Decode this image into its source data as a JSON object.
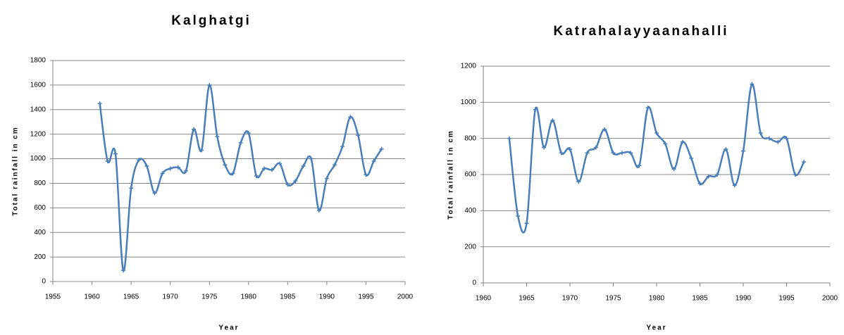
{
  "chart_data": [
    {
      "type": "line",
      "title": "Kalghatgi",
      "x_label": "Year",
      "y_label": "Total rainfall in cm",
      "xlim": [
        1955,
        2000
      ],
      "xticks": [
        1955,
        1960,
        1965,
        1970,
        1975,
        1980,
        1985,
        1990,
        1995,
        2000
      ],
      "ylim": [
        0,
        1800
      ],
      "yticks": [
        0,
        200,
        400,
        600,
        800,
        1000,
        1200,
        1400,
        1600,
        1800
      ],
      "grid": true,
      "x": [
        1961,
        1962,
        1963,
        1964,
        1965,
        1966,
        1967,
        1968,
        1969,
        1970,
        1971,
        1972,
        1973,
        1974,
        1975,
        1976,
        1977,
        1978,
        1979,
        1980,
        1981,
        1982,
        1983,
        1984,
        1985,
        1986,
        1987,
        1988,
        1989,
        1990,
        1991,
        1992,
        1993,
        1994,
        1995,
        1996,
        1997
      ],
      "series": [
        {
          "color": "#4a7ebb",
          "values": [
            1450,
            980,
            1040,
            90,
            760,
            990,
            940,
            720,
            880,
            920,
            930,
            900,
            1240,
            1070,
            1600,
            1180,
            950,
            880,
            1130,
            1210,
            860,
            920,
            910,
            960,
            790,
            820,
            940,
            1000,
            580,
            840,
            950,
            1100,
            1340,
            1190,
            870,
            980,
            1080
          ]
        }
      ]
    },
    {
      "type": "line",
      "title": "Katrahalayyaanahalli",
      "x_label": "Year",
      "y_label": "Total rainfall in cm",
      "xlim": [
        1960,
        2000
      ],
      "xticks": [
        1960,
        1965,
        1970,
        1975,
        1980,
        1985,
        1990,
        1995,
        2000
      ],
      "ylim": [
        0,
        1200
      ],
      "yticks": [
        0,
        200,
        400,
        600,
        800,
        1000,
        1200
      ],
      "grid": true,
      "x": [
        1963,
        1964,
        1965,
        1966,
        1967,
        1968,
        1969,
        1970,
        1971,
        1972,
        1973,
        1974,
        1975,
        1976,
        1977,
        1978,
        1979,
        1980,
        1981,
        1982,
        1983,
        1984,
        1985,
        1986,
        1987,
        1988,
        1989,
        1990,
        1991,
        1992,
        1993,
        1994,
        1995,
        1996,
        1997
      ],
      "series": [
        {
          "color": "#4a7ebb",
          "values": [
            800,
            370,
            330,
            960,
            750,
            900,
            720,
            740,
            560,
            720,
            750,
            850,
            720,
            720,
            720,
            650,
            970,
            830,
            770,
            630,
            780,
            690,
            550,
            590,
            600,
            740,
            540,
            730,
            1100,
            830,
            800,
            780,
            800,
            600,
            670
          ]
        }
      ]
    }
  ]
}
